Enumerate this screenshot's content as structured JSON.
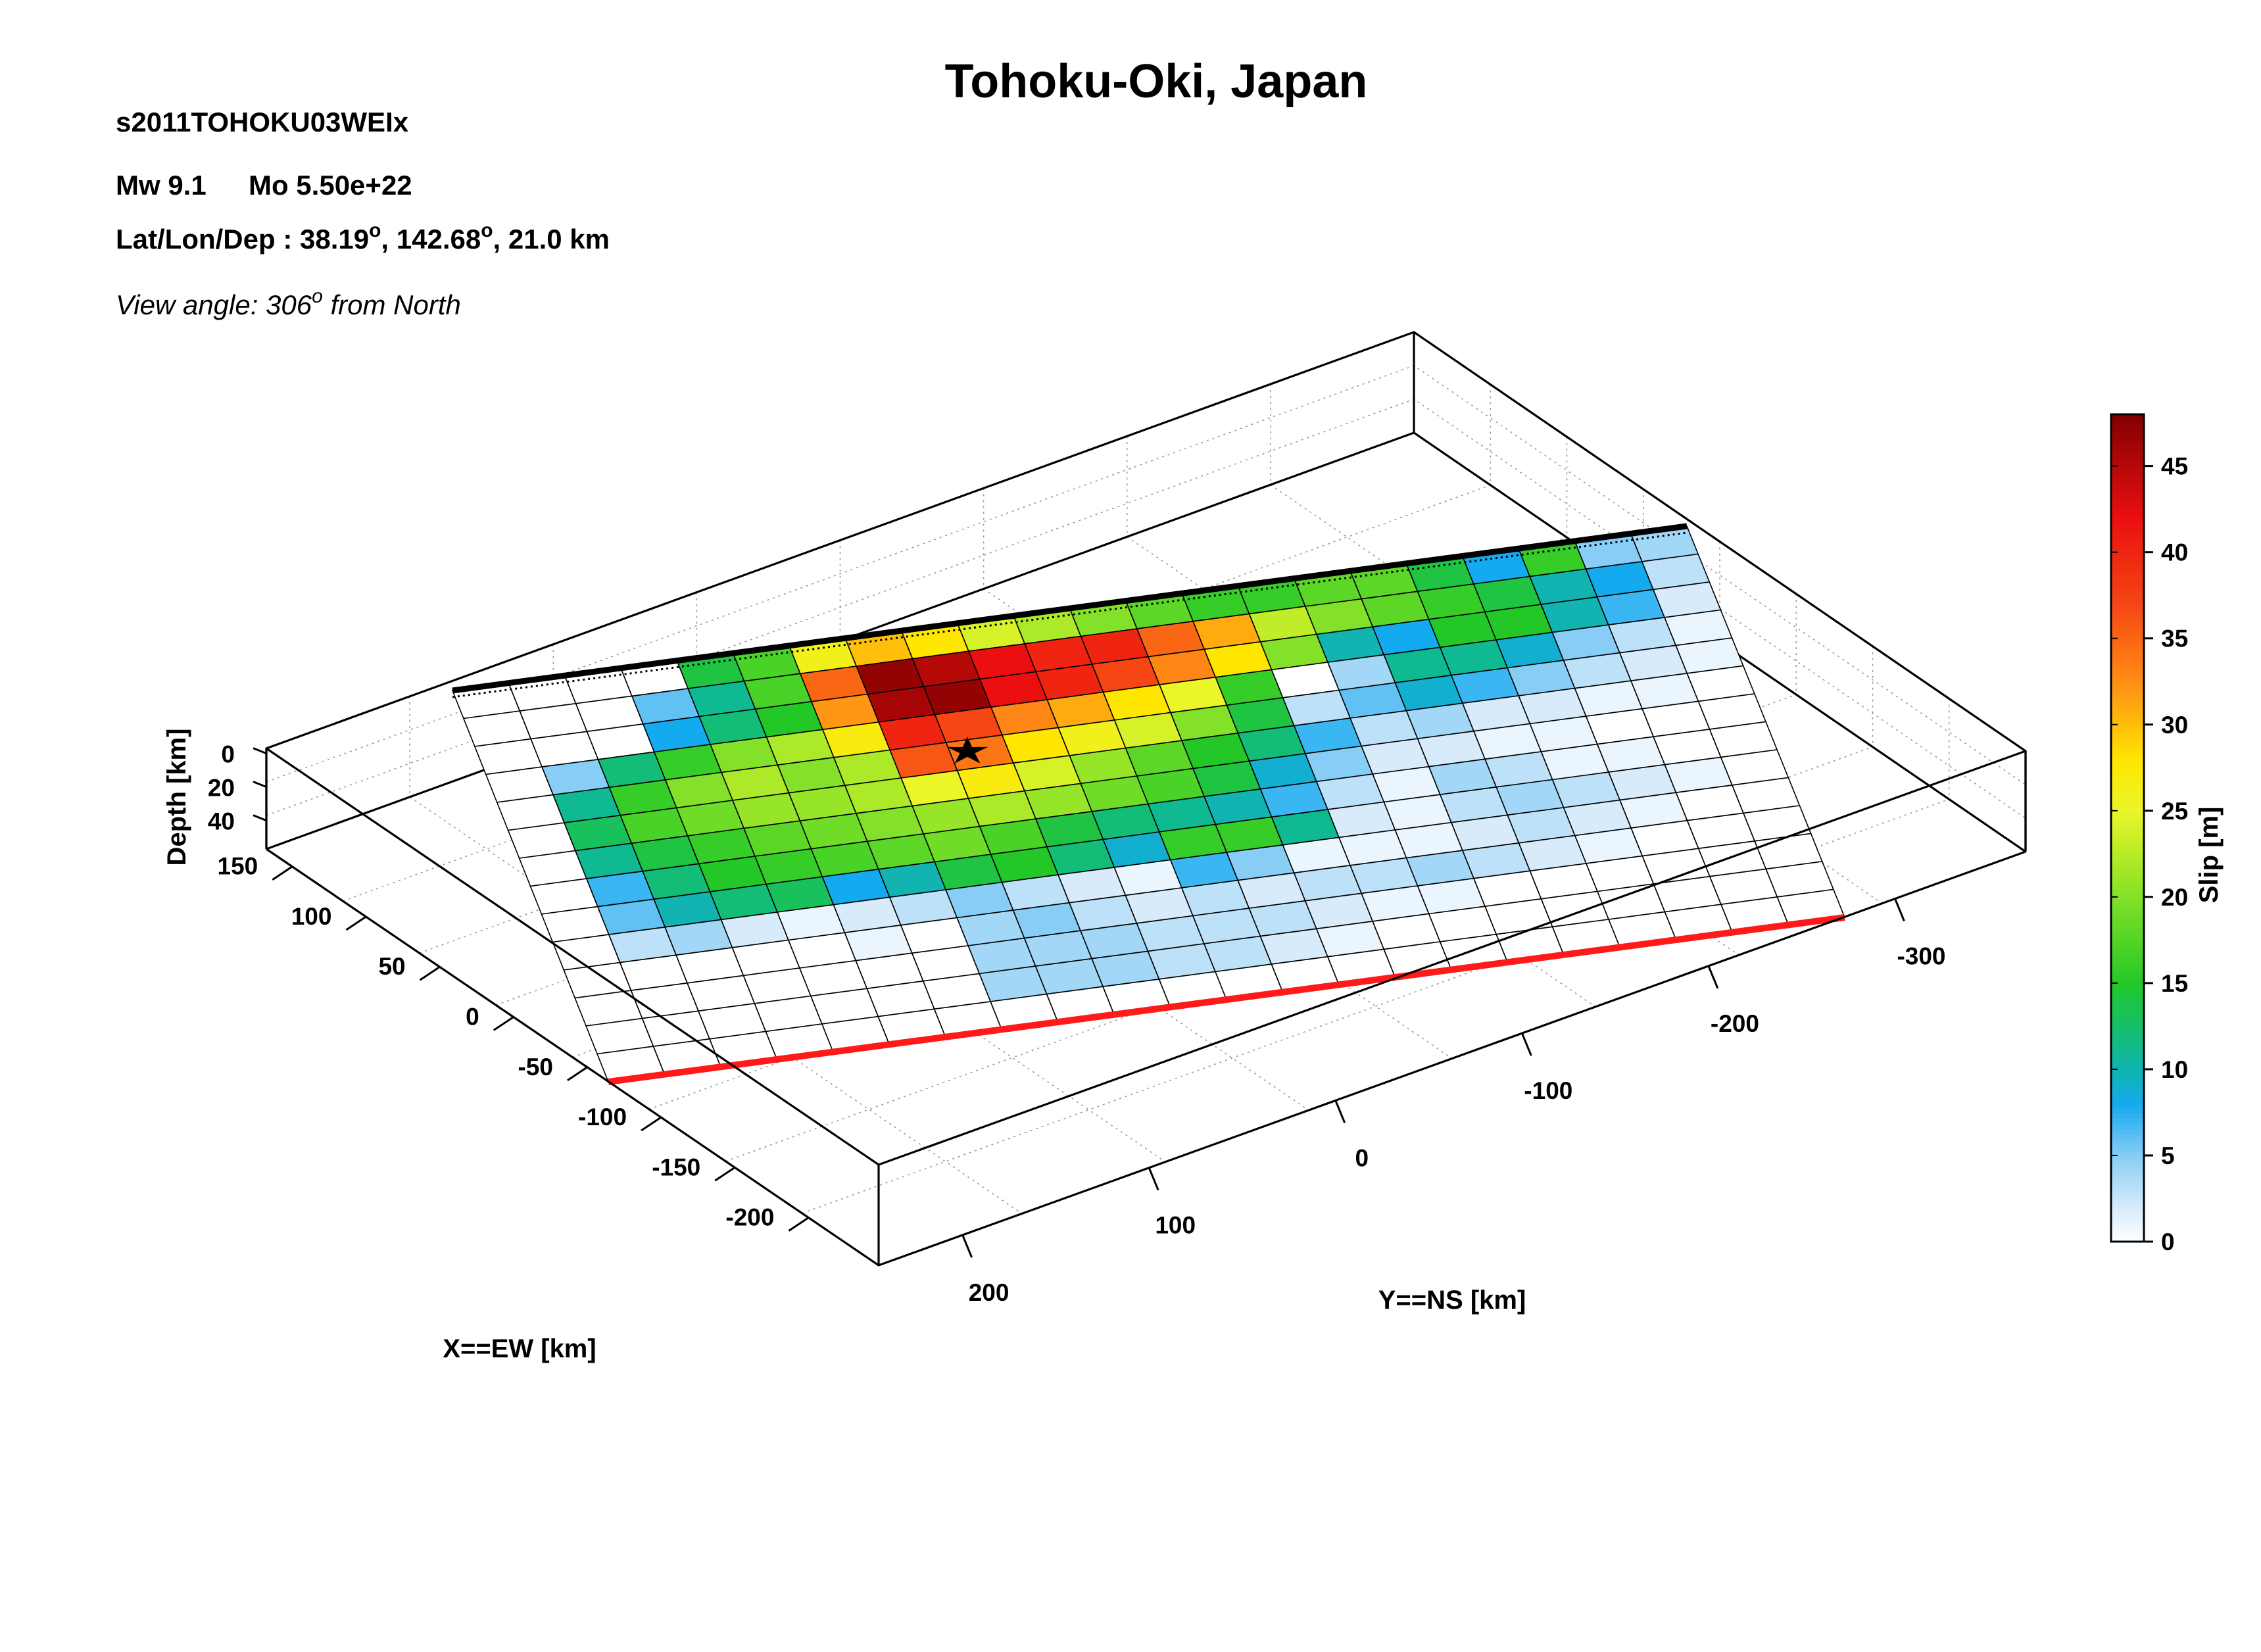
{
  "header": {
    "event_id": "s2011TOHOKU03WEIx",
    "magnitude": "Mw 9.1",
    "moment": "Mo 5.50e+22",
    "location_prefix": "Lat/Lon/Dep : 38.19",
    "location_lon": ", 142.68",
    "location_dep": ", 21.0 km",
    "degree_symbol": "o",
    "view_prefix": "View angle: 306",
    "view_suffix": " from North"
  },
  "chart_data": {
    "type": "heatmap",
    "title": "Tohoku-Oki, Japan",
    "xlabel": "X==EW [km]",
    "ylabel": "Y==NS [km]",
    "zlabel": "Depth [km]",
    "colorbar_label": "Slip [m]",
    "colorbar_ticks": [
      0,
      5,
      10,
      15,
      20,
      25,
      30,
      35,
      40,
      45
    ],
    "colorbar_range": [
      0,
      48
    ],
    "x_ticks": [
      150,
      100,
      50,
      0,
      -50,
      -100,
      -150,
      -200
    ],
    "y_ticks": [
      -300,
      -200,
      -100,
      0,
      100,
      200
    ],
    "z_ticks": [
      0,
      20,
      40
    ],
    "rows_note": "rows from top (trench) to bottom (down-dip), columns from left to right",
    "slip": [
      [
        0,
        0,
        0,
        0,
        14,
        17,
        26,
        30,
        28,
        24,
        22,
        20,
        18,
        16,
        16,
        18,
        18,
        14,
        8,
        16,
        5,
        4
      ],
      [
        0,
        0,
        0,
        6,
        11,
        17,
        35,
        47,
        45,
        42,
        40,
        40,
        35,
        31,
        23,
        20,
        18,
        16,
        14,
        10,
        8,
        3
      ],
      [
        0,
        0,
        0,
        8,
        12,
        15,
        32,
        46,
        47,
        42,
        40,
        37,
        33,
        28,
        20,
        10,
        8,
        15,
        15,
        10,
        7,
        2
      ],
      [
        0,
        5,
        12,
        16,
        20,
        22,
        27,
        40,
        37,
        33,
        31,
        28,
        25,
        16,
        0,
        4,
        11,
        11,
        9,
        5,
        3,
        1
      ],
      [
        0,
        11,
        16,
        20,
        22,
        20,
        22,
        36,
        34,
        28,
        26,
        24,
        20,
        14,
        3,
        6,
        9,
        7,
        5,
        3,
        2,
        1
      ],
      [
        0,
        13,
        17,
        19,
        21,
        21,
        22,
        25,
        27,
        24,
        21,
        18,
        15,
        12,
        7,
        3,
        4,
        2,
        2,
        1,
        1,
        0
      ],
      [
        0,
        11,
        14,
        16,
        18,
        19,
        20,
        21,
        22,
        21,
        19,
        17,
        14,
        9,
        5,
        2,
        2,
        1,
        1,
        0,
        0,
        0
      ],
      [
        0,
        7,
        12,
        15,
        16,
        17,
        18,
        19,
        17,
        14,
        12,
        11,
        10,
        7,
        3,
        1,
        4,
        3,
        1,
        1,
        0,
        0
      ],
      [
        0,
        6,
        10,
        12,
        13,
        8,
        10,
        14,
        15,
        12,
        9,
        16,
        16,
        11,
        2,
        1,
        3,
        4,
        3,
        2,
        1,
        0
      ],
      [
        0,
        3,
        4,
        2,
        1,
        2,
        3,
        5,
        3,
        2,
        1,
        7,
        5,
        1,
        1,
        1,
        2,
        3,
        2,
        1,
        0,
        0
      ],
      [
        0,
        0,
        0,
        0,
        0,
        1,
        0,
        4,
        5,
        3,
        2,
        3,
        2,
        3,
        3,
        4,
        3,
        2,
        1,
        0,
        0,
        0
      ],
      [
        0,
        0,
        0,
        0,
        0,
        0,
        0,
        4,
        4,
        4,
        3,
        3,
        3,
        2,
        1,
        1,
        0,
        0,
        0,
        0,
        0,
        0
      ],
      [
        0,
        0,
        0,
        0,
        0,
        0,
        0,
        4,
        4,
        4,
        3,
        3,
        2,
        1,
        0,
        0,
        0,
        0,
        0,
        0,
        0,
        0
      ],
      [
        0,
        0,
        0,
        0,
        0,
        0,
        0,
        0,
        0,
        0,
        0,
        0,
        0,
        0,
        0,
        0,
        0,
        0,
        0,
        0,
        0,
        0
      ]
    ],
    "legend": "none",
    "grid": true
  }
}
